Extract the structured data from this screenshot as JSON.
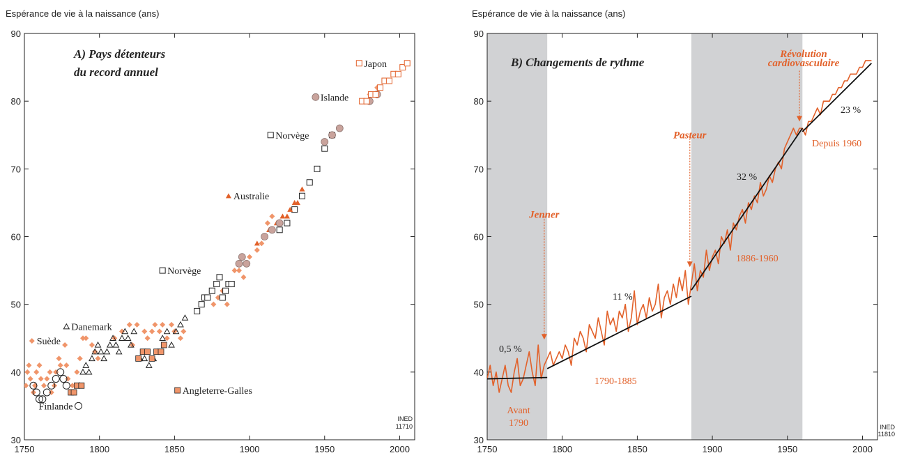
{
  "colors": {
    "orange": "#e2612a",
    "light_orange": "#f0956a",
    "band": "#d1d2d4",
    "rose": "#c9a39c",
    "axis": "#222222"
  },
  "chart_data": [
    {
      "type": "scatter",
      "title": "A) Pays détenteurs du record annuel",
      "title_lines": [
        "A) Pays détenteurs",
        "du record annuel"
      ],
      "ylabel": "Espérance de vie à la naissance (ans)",
      "xlim": [
        1750,
        2010
      ],
      "ylim": [
        30,
        90
      ],
      "x_ticks": [
        "1750",
        "1800",
        "1850",
        "1900",
        "1950",
        "2000"
      ],
      "y_ticks": [
        "30",
        "40",
        "50",
        "60",
        "70",
        "80",
        "90"
      ],
      "credit": [
        "INED",
        "11710"
      ],
      "series": [
        {
          "name": "Suède",
          "marker": "diamond-orange",
          "legend_point": [
            1755,
            44.6
          ],
          "points": [
            [
              1751,
              38
            ],
            [
              1752,
              40
            ],
            [
              1753,
              41
            ],
            [
              1754,
              39
            ],
            [
              1756,
              37
            ],
            [
              1757,
              38
            ],
            [
              1758,
              40
            ],
            [
              1760,
              41
            ],
            [
              1761,
              39
            ],
            [
              1763,
              38
            ],
            [
              1765,
              39
            ],
            [
              1767,
              40
            ],
            [
              1768,
              37
            ],
            [
              1770,
              38
            ],
            [
              1771,
              40
            ],
            [
              1773,
              42
            ],
            [
              1774,
              41
            ],
            [
              1777,
              44
            ],
            [
              1778,
              41
            ],
            [
              1779,
              39
            ],
            [
              1782,
              38
            ],
            [
              1783,
              37
            ],
            [
              1785,
              40
            ],
            [
              1787,
              42
            ],
            [
              1789,
              45
            ],
            [
              1791,
              45
            ],
            [
              1795,
              44
            ],
            [
              1797,
              43
            ],
            [
              1799,
              42
            ],
            [
              1810,
              45
            ],
            [
              1815,
              46
            ],
            [
              1820,
              47
            ],
            [
              1822,
              44
            ],
            [
              1825,
              47
            ],
            [
              1830,
              46
            ],
            [
              1832,
              45
            ],
            [
              1835,
              46
            ],
            [
              1837,
              47
            ],
            [
              1840,
              46
            ],
            [
              1842,
              47
            ],
            [
              1845,
              45
            ],
            [
              1848,
              47
            ],
            [
              1850,
              46
            ],
            [
              1854,
              45
            ],
            [
              1856,
              46
            ],
            [
              1876,
              50
            ],
            [
              1879,
              51
            ],
            [
              1882,
              52
            ],
            [
              1885,
              50
            ],
            [
              1888,
              53
            ],
            [
              1890,
              55
            ],
            [
              1893,
              55
            ],
            [
              1896,
              54
            ],
            [
              1900,
              57
            ],
            [
              1905,
              58
            ],
            [
              1908,
              59
            ],
            [
              1912,
              62
            ],
            [
              1915,
              63
            ],
            [
              1975,
              80
            ],
            [
              1980,
              81
            ],
            [
              1985,
              82
            ]
          ]
        },
        {
          "name": "Danemark",
          "marker": "triangle-open",
          "legend_point": [
            1778,
            46.7
          ],
          "points": [
            [
              1787,
              38
            ],
            [
              1789,
              40
            ],
            [
              1791,
              41
            ],
            [
              1793,
              40
            ],
            [
              1795,
              42
            ],
            [
              1797,
              43
            ],
            [
              1799,
              44
            ],
            [
              1801,
              43
            ],
            [
              1803,
              42
            ],
            [
              1805,
              43
            ],
            [
              1807,
              44
            ],
            [
              1809,
              45
            ],
            [
              1811,
              44
            ],
            [
              1813,
              43
            ],
            [
              1815,
              45
            ],
            [
              1817,
              46
            ],
            [
              1819,
              45
            ],
            [
              1821,
              44
            ],
            [
              1823,
              46
            ],
            [
              1827,
              42
            ],
            [
              1830,
              42
            ],
            [
              1833,
              41
            ],
            [
              1836,
              42
            ],
            [
              1839,
              43
            ],
            [
              1842,
              45
            ],
            [
              1845,
              46
            ],
            [
              1848,
              44
            ],
            [
              1851,
              46
            ],
            [
              1854,
              47
            ],
            [
              1857,
              48
            ]
          ]
        },
        {
          "name": "Finlande",
          "marker": "circle-open",
          "legend_point": [
            1786,
            35
          ],
          "points": [
            [
              1756,
              38
            ],
            [
              1758,
              37
            ],
            [
              1760,
              36
            ],
            [
              1762,
              36
            ],
            [
              1765,
              37
            ],
            [
              1768,
              38
            ],
            [
              1771,
              39
            ],
            [
              1774,
              40
            ],
            [
              1776,
              39
            ],
            [
              1778,
              38
            ]
          ]
        },
        {
          "name": "Angleterre-Galles",
          "marker": "square-orange",
          "legend_point": [
            1852,
            37.3
          ],
          "points": [
            [
              1781,
              37
            ],
            [
              1783,
              37
            ],
            [
              1785,
              38
            ],
            [
              1788,
              38
            ],
            [
              1826,
              42
            ],
            [
              1829,
              43
            ],
            [
              1832,
              43
            ],
            [
              1835,
              42
            ],
            [
              1838,
              43
            ],
            [
              1841,
              43
            ],
            [
              1843,
              44
            ]
          ]
        },
        {
          "name": "Norvège",
          "marker": "square-open",
          "legend_point": [
            1842,
            55
          ],
          "points": [
            [
              1865,
              49
            ],
            [
              1868,
              50
            ],
            [
              1870,
              51
            ],
            [
              1872,
              51
            ],
            [
              1875,
              52
            ],
            [
              1878,
              53
            ],
            [
              1880,
              54
            ],
            [
              1882,
              51
            ],
            [
              1884,
              52
            ],
            [
              1886,
              53
            ],
            [
              1888,
              53
            ],
            [
              1920,
              61
            ],
            [
              1925,
              62
            ],
            [
              1930,
              64
            ],
            [
              1935,
              66
            ],
            [
              1940,
              68
            ],
            [
              1945,
              70
            ],
            [
              1950,
              73
            ],
            [
              1955,
              75
            ]
          ]
        },
        {
          "name": "Norvège",
          "marker": "square-open",
          "legend_point": [
            1914,
            75
          ],
          "points": []
        },
        {
          "name": "Australie",
          "marker": "triangle-orange",
          "legend_point": [
            1886,
            66
          ],
          "points": [
            [
              1905,
              59
            ],
            [
              1910,
              60
            ],
            [
              1913,
              61
            ],
            [
              1918,
              62
            ],
            [
              1920,
              62
            ],
            [
              1922,
              63
            ],
            [
              1925,
              63
            ],
            [
              1927,
              64
            ],
            [
              1930,
              65
            ],
            [
              1932,
              65
            ],
            [
              1935,
              67
            ]
          ]
        },
        {
          "name": "Islande",
          "marker": "circle-rose",
          "legend_point": [
            1944,
            80.6
          ],
          "points": [
            [
              1893,
              56
            ],
            [
              1895,
              57
            ],
            [
              1898,
              56
            ],
            [
              1910,
              60
            ],
            [
              1915,
              61
            ],
            [
              1920,
              62
            ],
            [
              1950,
              74
            ],
            [
              1955,
              75
            ],
            [
              1960,
              76
            ],
            [
              1980,
              80
            ],
            [
              1985,
              81
            ]
          ]
        },
        {
          "name": "Japon",
          "marker": "square-open-orange",
          "legend_point": [
            1973,
            85.6
          ],
          "points": [
            [
              1975,
              80
            ],
            [
              1978,
              80
            ],
            [
              1981,
              81
            ],
            [
              1984,
              81
            ],
            [
              1987,
              82
            ],
            [
              1990,
              83
            ],
            [
              1993,
              83
            ],
            [
              1996,
              84
            ],
            [
              1999,
              84
            ],
            [
              2002,
              85
            ],
            [
              2005,
              85.6
            ]
          ]
        }
      ]
    },
    {
      "type": "line",
      "title": "B) Changements de rythme",
      "ylabel": "Espérance de vie à la naissance (ans)",
      "xlim": [
        1750,
        2010
      ],
      "ylim": [
        30,
        90
      ],
      "x_ticks": [
        "1750",
        "1800",
        "1850",
        "1900",
        "1950",
        "2000"
      ],
      "y_ticks": [
        "30",
        "40",
        "50",
        "60",
        "70",
        "80",
        "90"
      ],
      "credit": [
        "INED",
        "11810"
      ],
      "shaded_periods": [
        [
          1750,
          1790
        ],
        [
          1886,
          1960
        ]
      ],
      "series_x": [
        1750,
        1752,
        1754,
        1756,
        1758,
        1760,
        1762,
        1764,
        1766,
        1768,
        1770,
        1772,
        1774,
        1776,
        1778,
        1780,
        1782,
        1784,
        1786,
        1788,
        1790,
        1792,
        1794,
        1796,
        1798,
        1800,
        1802,
        1804,
        1806,
        1808,
        1810,
        1812,
        1814,
        1816,
        1818,
        1820,
        1822,
        1824,
        1826,
        1828,
        1830,
        1832,
        1834,
        1836,
        1838,
        1840,
        1842,
        1844,
        1846,
        1848,
        1850,
        1852,
        1854,
        1856,
        1858,
        1860,
        1862,
        1864,
        1866,
        1868,
        1870,
        1872,
        1874,
        1876,
        1878,
        1880,
        1882,
        1884,
        1886,
        1888,
        1890,
        1892,
        1894,
        1896,
        1898,
        1900,
        1902,
        1904,
        1906,
        1908,
        1910,
        1912,
        1914,
        1916,
        1918,
        1920,
        1922,
        1924,
        1926,
        1928,
        1930,
        1932,
        1934,
        1936,
        1938,
        1940,
        1942,
        1944,
        1946,
        1948,
        1950,
        1952,
        1954,
        1956,
        1958,
        1960,
        1962,
        1964,
        1966,
        1968,
        1970,
        1972,
        1974,
        1976,
        1978,
        1980,
        1982,
        1984,
        1986,
        1988,
        1990,
        1992,
        1994,
        1996,
        1998,
        2000,
        2002,
        2004,
        2006
      ],
      "series_y": [
        39,
        41,
        38,
        40,
        37,
        39,
        41,
        38,
        37,
        40,
        42,
        38,
        39,
        41,
        43,
        40,
        38,
        44,
        39,
        41,
        42,
        43,
        41,
        42,
        43,
        42,
        44,
        43,
        41,
        45,
        44,
        46,
        45,
        43,
        47,
        46,
        45,
        48,
        46,
        44,
        49,
        47,
        48,
        46,
        49,
        48,
        50,
        46,
        48,
        52,
        47,
        49,
        50,
        48,
        51,
        49,
        50,
        53,
        48,
        51,
        52,
        50,
        53,
        51,
        54,
        52,
        55,
        50,
        53,
        56,
        52,
        55,
        54,
        58,
        55,
        57,
        58,
        56,
        60,
        59,
        61,
        58,
        62,
        61,
        63,
        64,
        62,
        65,
        64,
        66,
        65,
        68,
        66,
        67,
        69,
        68,
        70,
        71,
        70,
        73,
        74,
        75,
        76,
        75,
        76,
        76,
        75,
        77,
        77,
        78,
        79,
        78,
        80,
        80,
        80,
        81,
        81,
        82,
        82,
        83,
        83,
        84,
        84,
        84,
        85,
        85,
        86,
        86,
        86
      ],
      "trend_segments": [
        {
          "label": "0,5 %",
          "x": [
            1750,
            1790
          ],
          "y": [
            39,
            39.2
          ]
        },
        {
          "label": "11 %",
          "x": [
            1790,
            1886
          ],
          "y": [
            40.5,
            51.2
          ]
        },
        {
          "label": "32 %",
          "x": [
            1886,
            1960
          ],
          "y": [
            52.1,
            76
          ]
        },
        {
          "label": "23 %",
          "x": [
            1960,
            2006
          ],
          "y": [
            75.5,
            85.6
          ]
        }
      ],
      "period_labels": [
        "Avant",
        "1790",
        "1790-1885",
        "1886-1960",
        "Depuis 1960"
      ],
      "events": [
        {
          "name": "Jenner",
          "x": 1788,
          "label_y": 62.8,
          "arrow_from": 63,
          "arrow_to": 44.8
        },
        {
          "name": "Pasteur",
          "x": 1885,
          "label_y": 74.5,
          "arrow_from": 74.5,
          "arrow_to": 55.5
        },
        {
          "name": "Révolution cardiovasculaire",
          "lines": [
            "Révolution",
            "cardiovasculaire"
          ],
          "x": 1958,
          "label_y": 86.5,
          "arrow_from": 84.5,
          "arrow_to": 77
        }
      ]
    }
  ]
}
